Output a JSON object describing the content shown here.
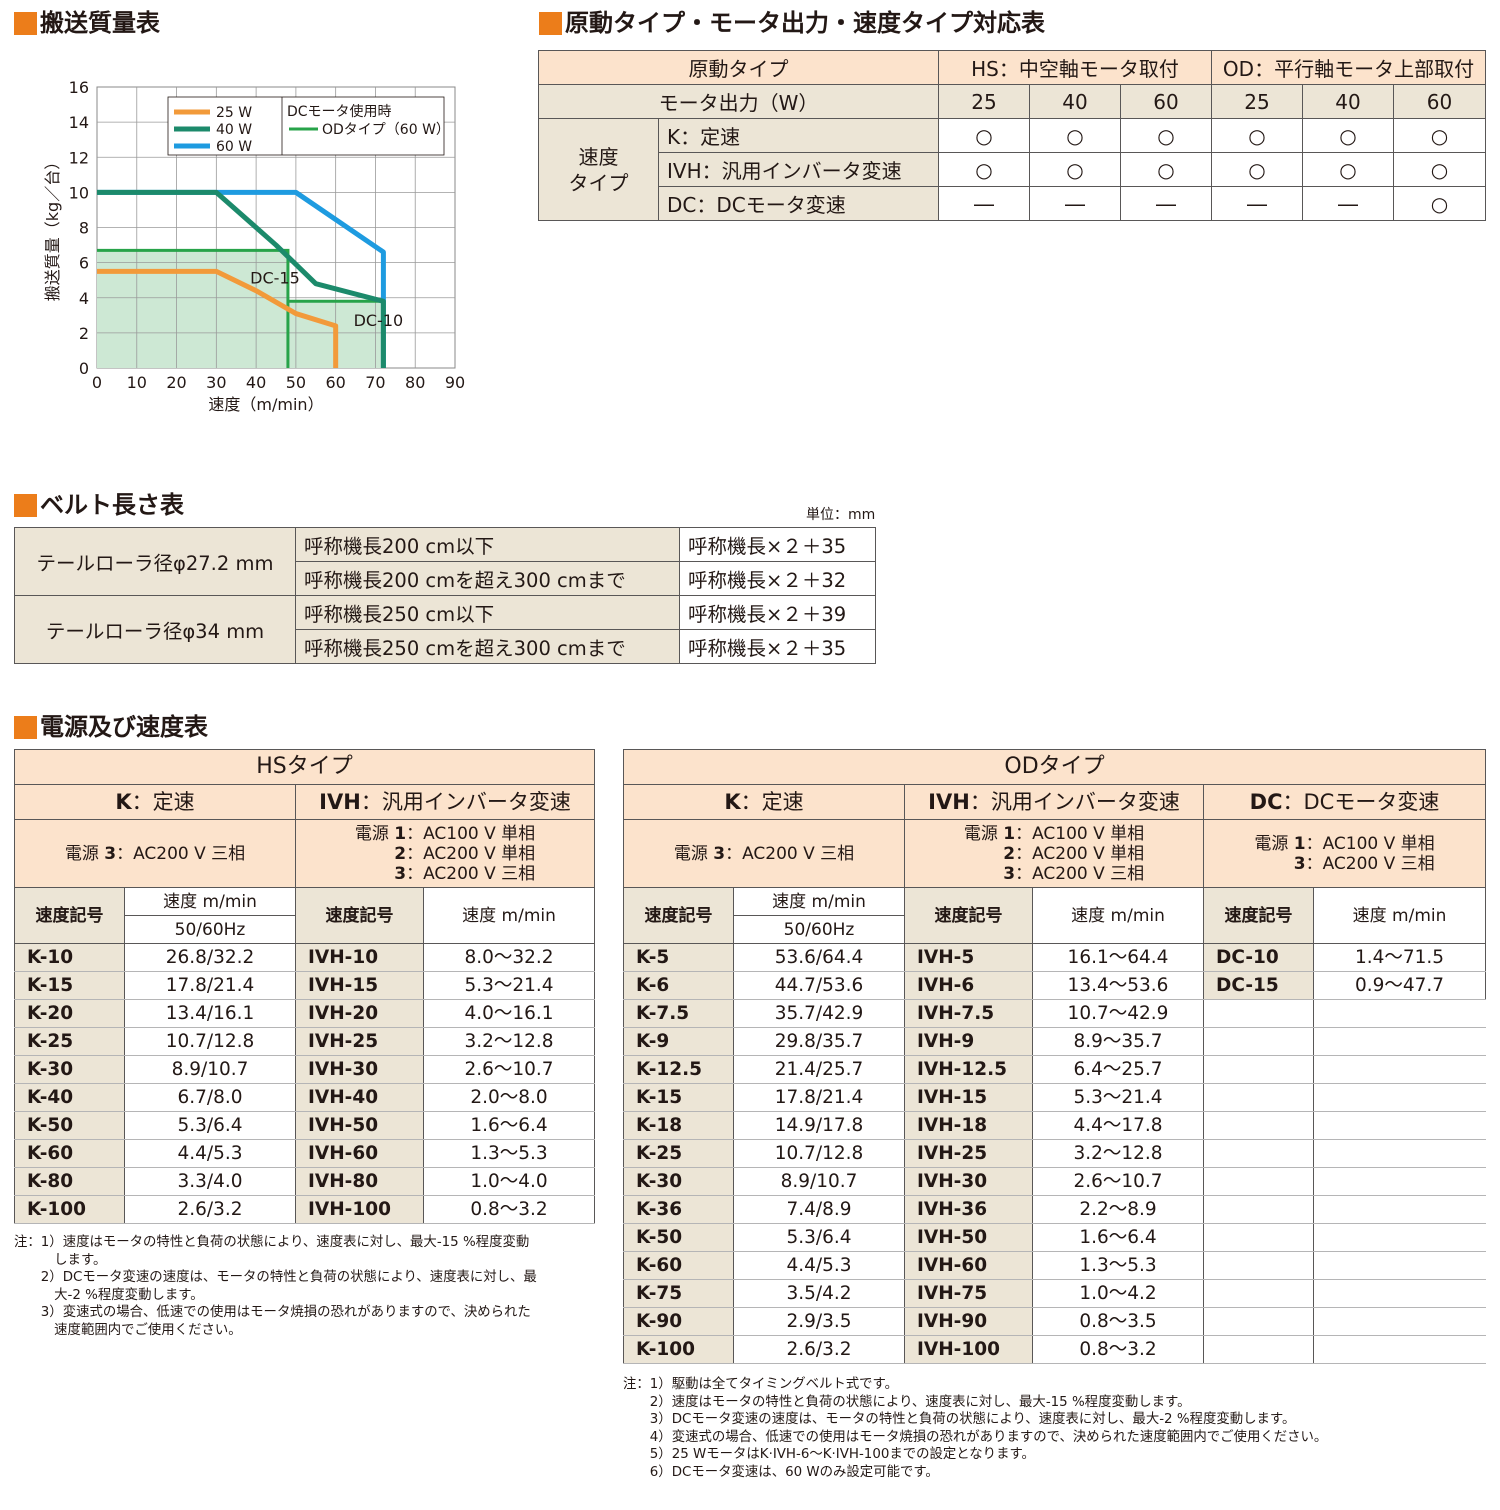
{
  "sections": {
    "mass_chart": "搬送質量表",
    "type_table": "原動タイプ・モータ出力・速度タイプ対応表",
    "belt_table": "ベルト長さ表",
    "speed_table": "電源及び速度表"
  },
  "chart_data": {
    "type": "line",
    "xlabel": "速度（m/min）",
    "ylabel": "搬送質量（kg／台）",
    "xlim": [
      0,
      90
    ],
    "ylim": [
      0,
      16
    ],
    "xticks": [
      "0",
      "10",
      "20",
      "30",
      "40",
      "50",
      "60",
      "70",
      "80",
      "90"
    ],
    "yticks": [
      "0",
      "2",
      "4",
      "6",
      "8",
      "10",
      "12",
      "14",
      "16"
    ],
    "grid": true,
    "legend_placement": "top",
    "legend": {
      "left": [
        "25 W",
        "40 W",
        "60 W"
      ],
      "right_title": "DCモータ使用時",
      "right_item": "ODタイプ（60 W）"
    },
    "series": [
      {
        "name": "60 W",
        "color": "#1e9be0",
        "x": [
          0,
          50,
          72,
          72
        ],
        "y": [
          10,
          10,
          6.6,
          0
        ]
      },
      {
        "name": "40 W",
        "color": "#1c8a6b",
        "x": [
          0,
          30,
          45,
          55,
          72,
          72
        ],
        "y": [
          10,
          10,
          7,
          4.8,
          3.8,
          0
        ]
      },
      {
        "name": "25 W",
        "color": "#f29a3a",
        "x": [
          0,
          30,
          40,
          50,
          60,
          60
        ],
        "y": [
          5.5,
          5.5,
          4.4,
          3.1,
          2.4,
          0
        ]
      }
    ],
    "dc_lines": [
      {
        "label": "DC-15",
        "color": "#27a349",
        "x": [
          0,
          48,
          48
        ],
        "y": [
          6.7,
          6.7,
          0
        ]
      },
      {
        "label": "DC-10",
        "color": "#27a349",
        "x": [
          48,
          72,
          72
        ],
        "y": [
          3.8,
          3.8,
          0
        ]
      }
    ],
    "dc_fill_color": "#cde8d4"
  },
  "type_table": {
    "r1": [
      "原動タイプ",
      "HS：中空軸モータ取付",
      "OD：平行軸モータ上部取付"
    ],
    "r2": [
      "モータ出力（W）",
      "25",
      "40",
      "60",
      "25",
      "40",
      "60"
    ],
    "speed_type_label": "速度\nタイプ",
    "rows": [
      {
        "label": "K：定速",
        "cells": [
          "○",
          "○",
          "○",
          "○",
          "○",
          "○"
        ]
      },
      {
        "label": "IVH：汎用インバータ変速",
        "cells": [
          "○",
          "○",
          "○",
          "○",
          "○",
          "○"
        ]
      },
      {
        "label": "DC：DCモータ変速",
        "cells": [
          "―",
          "―",
          "―",
          "―",
          "―",
          "○"
        ]
      }
    ]
  },
  "belt_table": {
    "unit": "単位：mm",
    "groups": [
      {
        "roller": "テールローラ径φ27.2 mm",
        "rows": [
          [
            "呼称機長200 cm以下",
            "呼称機長×２＋35"
          ],
          [
            "呼称機長200 cmを超え300 cmまで",
            "呼称機長×２＋32"
          ]
        ]
      },
      {
        "roller": "テールローラ径φ34 mm",
        "rows": [
          [
            "呼称機長250 cm以下",
            "呼称機長×２＋39"
          ],
          [
            "呼称機長250 cmを超え300 cmまで",
            "呼称機長×２＋35"
          ]
        ]
      }
    ]
  },
  "hs_table": {
    "title": "HSタイプ",
    "k_header": {
      "code": "K",
      "label": "：定速"
    },
    "ivh_header": {
      "code": "IVH",
      "label": "：汎用インバータ変速"
    },
    "k_power": [
      "電源 ",
      "3",
      "：AC200 V 三相"
    ],
    "ivh_power": [
      [
        "電源 ",
        "1",
        "：AC100 V 単相"
      ],
      [
        "",
        "2",
        "：AC200 V 単相"
      ],
      [
        "",
        "3",
        "：AC200 V 三相"
      ]
    ],
    "col_code": "速度記号",
    "col_speed": "速度 m/min",
    "col_hz": "50/60Hz",
    "rows": [
      [
        "K-10",
        "26.8/32.2",
        "IVH-10",
        "8.0～32.2"
      ],
      [
        "K-15",
        "17.8/21.4",
        "IVH-15",
        "5.3～21.4"
      ],
      [
        "K-20",
        "13.4/16.1",
        "IVH-20",
        "4.0～16.1"
      ],
      [
        "K-25",
        "10.7/12.8",
        "IVH-25",
        "3.2～12.8"
      ],
      [
        "K-30",
        "8.9/10.7",
        "IVH-30",
        "2.6～10.7"
      ],
      [
        "K-40",
        "6.7/8.0",
        "IVH-40",
        "2.0～8.0"
      ],
      [
        "K-50",
        "5.3/6.4",
        "IVH-50",
        "1.6～6.4"
      ],
      [
        "K-60",
        "4.4/5.3",
        "IVH-60",
        "1.3～5.3"
      ],
      [
        "K-80",
        "3.3/4.0",
        "IVH-80",
        "1.0～4.0"
      ],
      [
        "K-100",
        "2.6/3.2",
        "IVH-100",
        "0.8～3.2"
      ]
    ],
    "notes": [
      "注：1）速度はモータの特性と負荷の状態により、速度表に対し、最大-15 %程度変動",
      "　　　します。",
      "　　2）DCモータ変速の速度は、モータの特性と負荷の状態により、速度表に対し、最",
      "　　　大-2 %程度変動します。",
      "　　3）変速式の場合、低速での使用はモータ焼損の恐れがありますので、決められた",
      "　　　速度範囲内でご使用ください。"
    ]
  },
  "od_table": {
    "title": "ODタイプ",
    "k_header": {
      "code": "K",
      "label": "：定速"
    },
    "ivh_header": {
      "code": "IVH",
      "label": "：汎用インバータ変速"
    },
    "dc_header": {
      "code": "DC",
      "label": "：DCモータ変速"
    },
    "k_power": [
      "電源 ",
      "3",
      "：AC200 V 三相"
    ],
    "ivh_power": [
      [
        "電源 ",
        "1",
        "：AC100 V 単相"
      ],
      [
        "",
        "2",
        "：AC200 V 単相"
      ],
      [
        "",
        "3",
        "：AC200 V 三相"
      ]
    ],
    "dc_power": [
      [
        "電源 ",
        "1",
        "：AC100 V 単相"
      ],
      [
        "",
        "3",
        "：AC200 V 三相"
      ]
    ],
    "col_code": "速度記号",
    "col_speed": "速度 m/min",
    "col_hz": "50/60Hz",
    "rows": [
      [
        "K-5",
        "53.6/64.4",
        "IVH-5",
        "16.1～64.4",
        "DC-10",
        "1.4～71.5"
      ],
      [
        "K-6",
        "44.7/53.6",
        "IVH-6",
        "13.4～53.6",
        "DC-15",
        "0.9～47.7"
      ],
      [
        "K-7.5",
        "35.7/42.9",
        "IVH-7.5",
        "10.7～42.9"
      ],
      [
        "K-9",
        "29.8/35.7",
        "IVH-9",
        "8.9～35.7"
      ],
      [
        "K-12.5",
        "21.4/25.7",
        "IVH-12.5",
        "6.4～25.7"
      ],
      [
        "K-15",
        "17.8/21.4",
        "IVH-15",
        "5.3～21.4"
      ],
      [
        "K-18",
        "14.9/17.8",
        "IVH-18",
        "4.4～17.8"
      ],
      [
        "K-25",
        "10.7/12.8",
        "IVH-25",
        "3.2～12.8"
      ],
      [
        "K-30",
        "8.9/10.7",
        "IVH-30",
        "2.6～10.7"
      ],
      [
        "K-36",
        "7.4/8.9",
        "IVH-36",
        "2.2～8.9"
      ],
      [
        "K-50",
        "5.3/6.4",
        "IVH-50",
        "1.6～6.4"
      ],
      [
        "K-60",
        "4.4/5.3",
        "IVH-60",
        "1.3～5.3"
      ],
      [
        "K-75",
        "3.5/4.2",
        "IVH-75",
        "1.0～4.2"
      ],
      [
        "K-90",
        "2.9/3.5",
        "IVH-90",
        "0.8～3.5"
      ],
      [
        "K-100",
        "2.6/3.2",
        "IVH-100",
        "0.8～3.2"
      ]
    ],
    "notes": [
      "注：1）駆動は全てタイミングベルト式です。",
      "　　2）速度はモータの特性と負荷の状態により、速度表に対し、最大-15 %程度変動します。",
      "　　3）DCモータ変速の速度は、モータの特性と負荷の状態により、速度表に対し、最大-2 %程度変動します。",
      "　　4）変速式の場合、低速での使用はモータ焼損の恐れがありますので、決められた速度範囲内でご使用ください。",
      "　　5）25 WモータはK·IVH-6～K·IVH-100までの設定となります。",
      "　　6）DCモータ変速は、60 Wのみ設定可能です。"
    ]
  }
}
